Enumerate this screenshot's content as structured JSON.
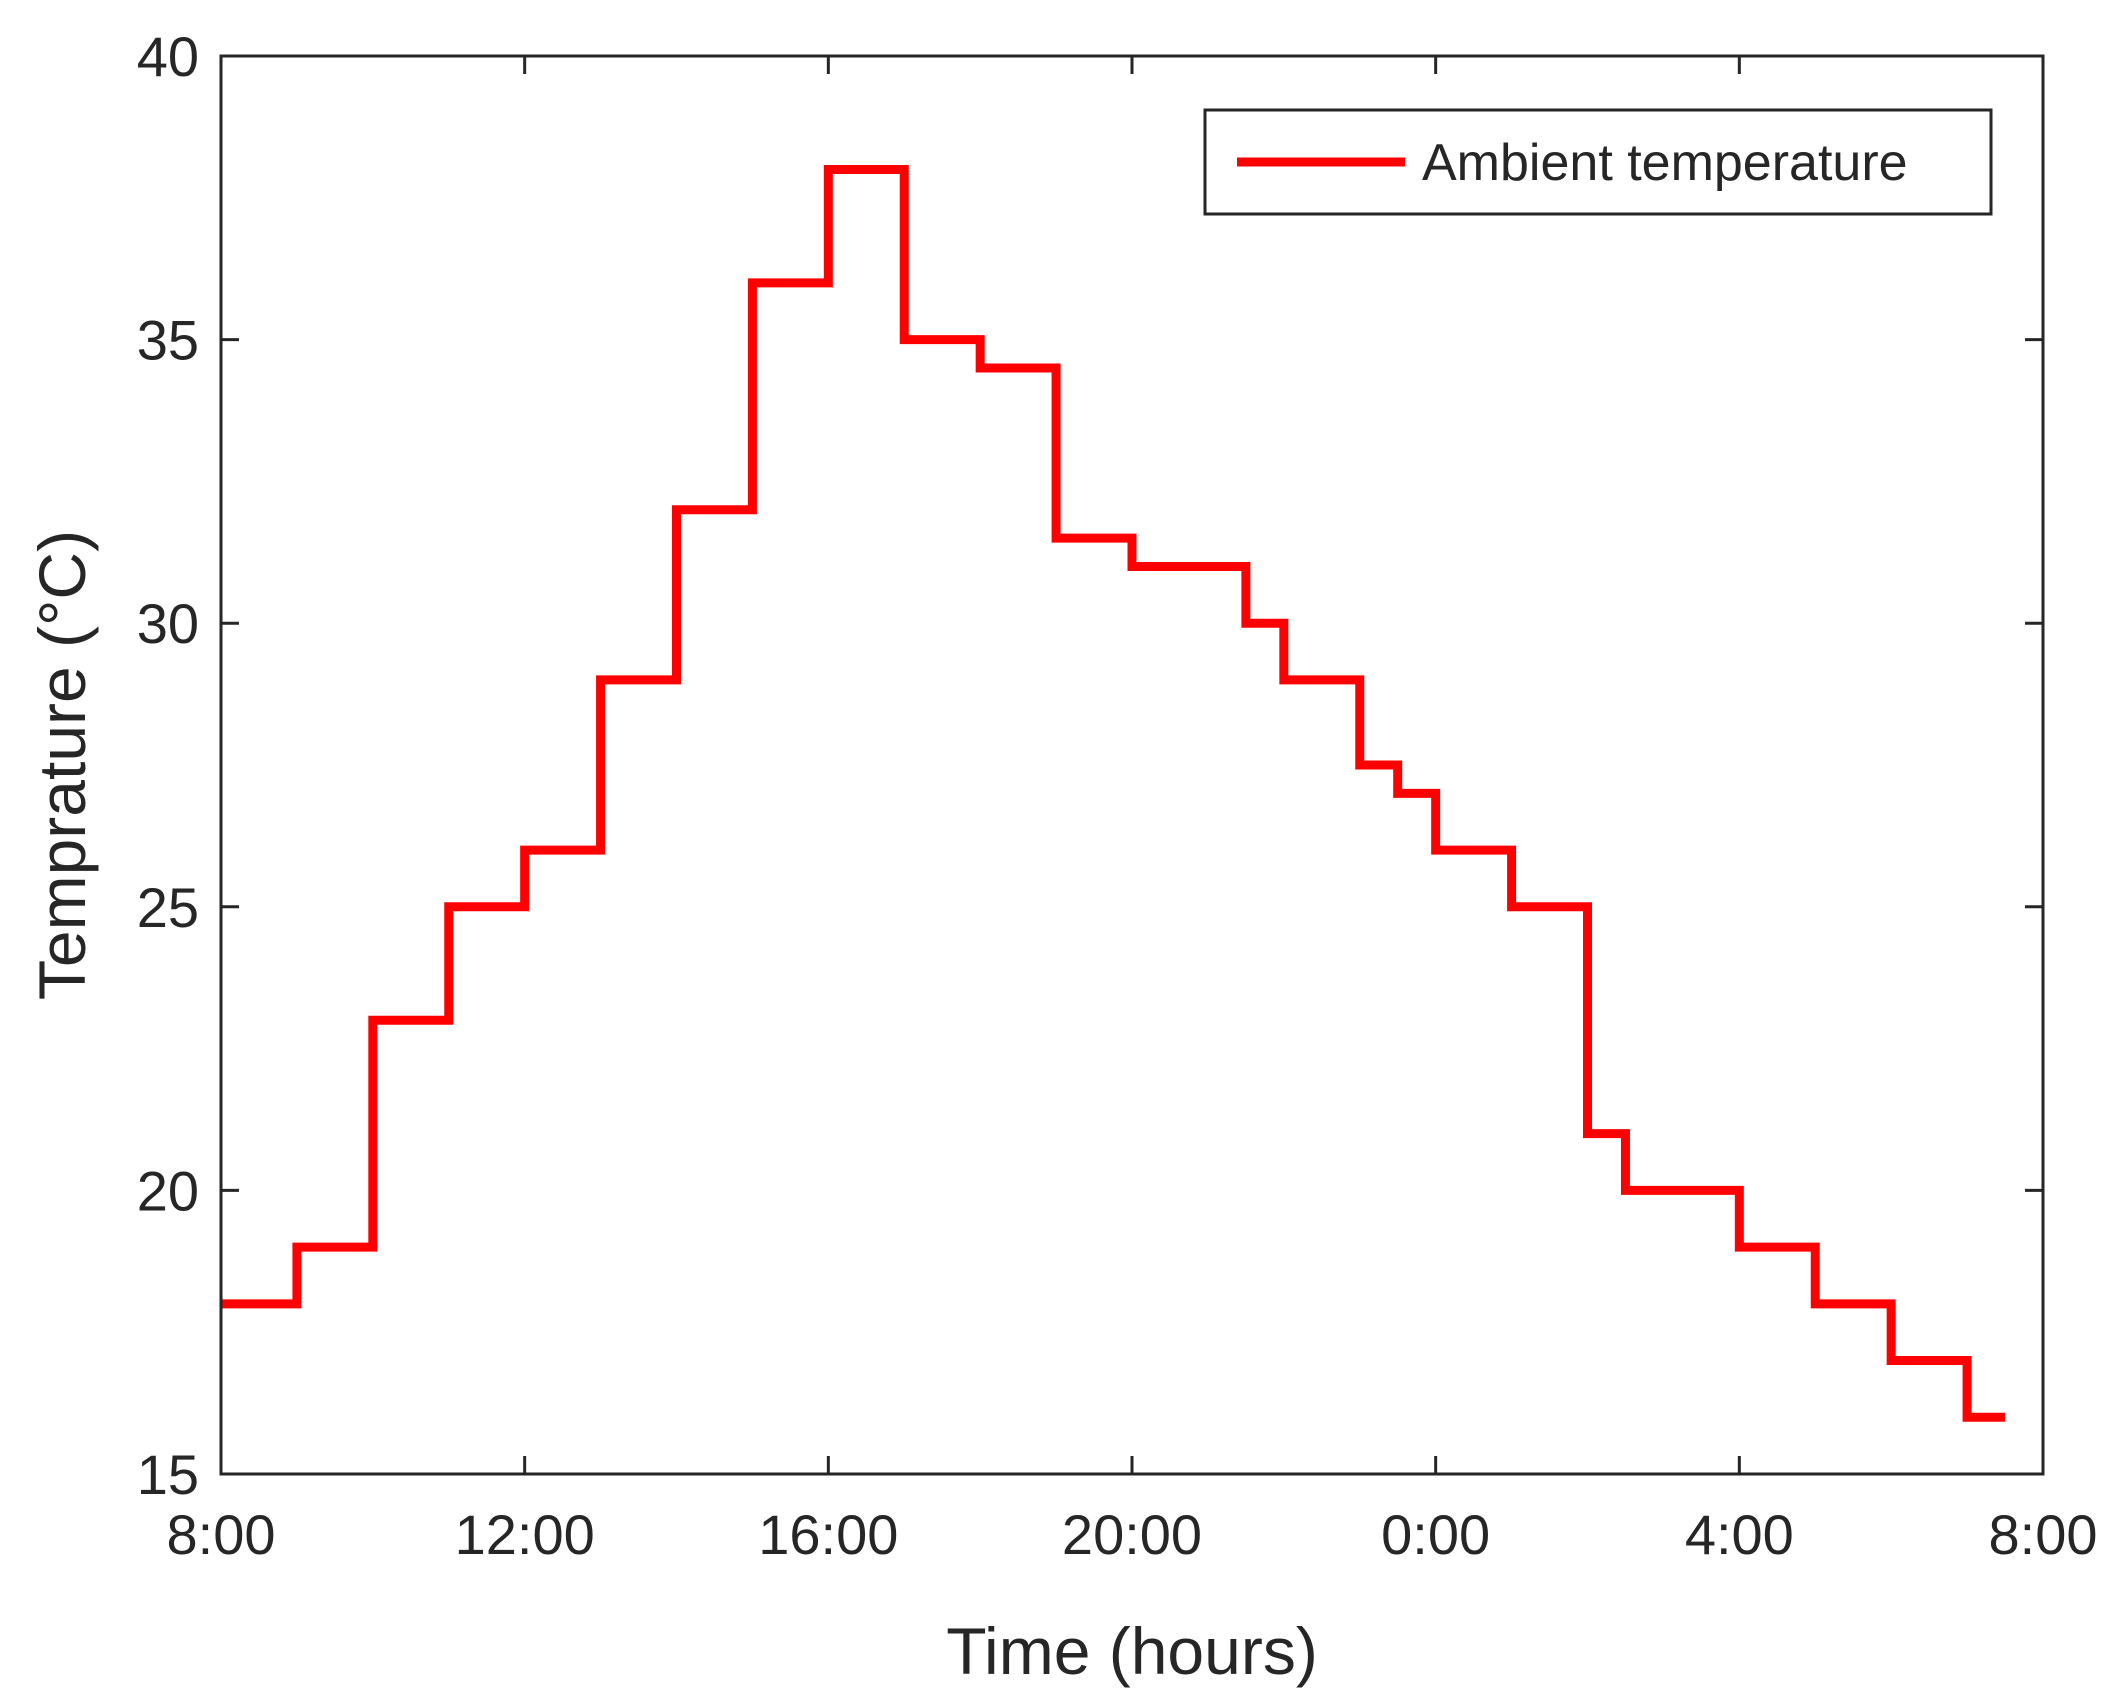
{
  "chart_data": {
    "type": "line",
    "step": true,
    "xlabel": "Time (hours)",
    "ylabel": "Temprature (°C)",
    "xlim": [
      8,
      32
    ],
    "ylim": [
      15,
      40
    ],
    "xticks": [
      {
        "value": 8,
        "label": "8:00"
      },
      {
        "value": 12,
        "label": "12:00"
      },
      {
        "value": 16,
        "label": "16:00"
      },
      {
        "value": 20,
        "label": "20:00"
      },
      {
        "value": 24,
        "label": "0:00"
      },
      {
        "value": 28,
        "label": "4:00"
      },
      {
        "value": 32,
        "label": "8:00"
      }
    ],
    "yticks": [
      {
        "value": 15,
        "label": "15"
      },
      {
        "value": 20,
        "label": "20"
      },
      {
        "value": 25,
        "label": "25"
      },
      {
        "value": 30,
        "label": "30"
      },
      {
        "value": 35,
        "label": "35"
      },
      {
        "value": 40,
        "label": "40"
      }
    ],
    "legend_position": "top-right",
    "grid": false,
    "series": [
      {
        "name": "Ambient temperature",
        "color": "#ff0000",
        "points": [
          [
            8,
            18
          ],
          [
            9,
            19
          ],
          [
            10,
            23
          ],
          [
            11,
            25
          ],
          [
            12,
            26
          ],
          [
            13,
            29
          ],
          [
            14,
            32
          ],
          [
            15,
            36
          ],
          [
            16,
            38
          ],
          [
            17,
            35
          ],
          [
            18,
            34.5
          ],
          [
            19,
            31.5
          ],
          [
            20,
            31
          ],
          [
            21.5,
            30
          ],
          [
            22,
            29
          ],
          [
            23,
            27.5
          ],
          [
            23.5,
            27
          ],
          [
            24,
            26
          ],
          [
            25,
            25
          ],
          [
            26,
            21
          ],
          [
            26.5,
            20
          ],
          [
            28,
            19
          ],
          [
            29,
            18
          ],
          [
            30,
            17
          ],
          [
            31,
            16
          ],
          [
            31.5,
            16
          ]
        ]
      }
    ]
  }
}
